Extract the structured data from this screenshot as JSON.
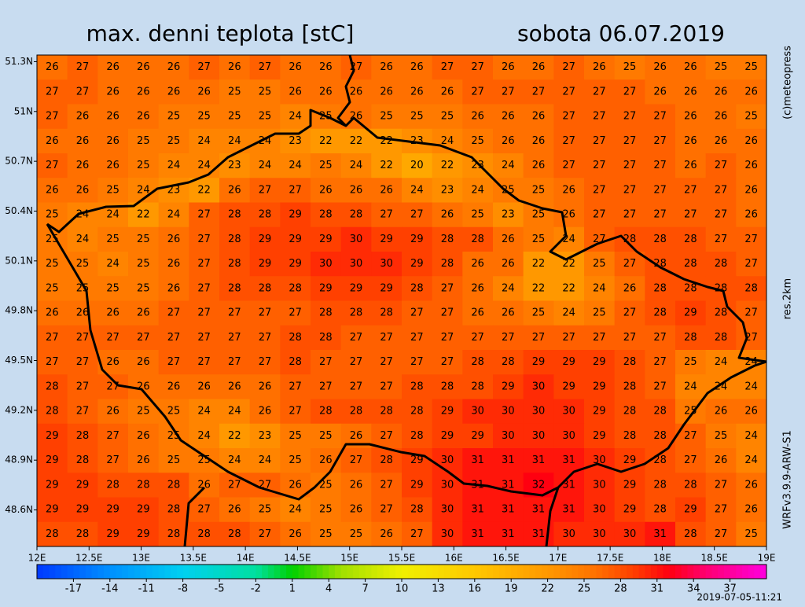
{
  "chart_data": {
    "type": "heatmap",
    "title": "max. denni teplota [stC]",
    "subtitle": "sobota 06.07.2019",
    "annotations": [
      "(c)meteopress",
      "res.2km",
      "WRFv3.9.9-ARW-S1",
      "2019-07-05-11:21"
    ],
    "xlim": [
      12,
      19
    ],
    "ylim": [
      48.38,
      51.34
    ],
    "xticks": [
      {
        "value": 12,
        "label": "12E"
      },
      {
        "value": 12.5,
        "label": "12.5E"
      },
      {
        "value": 13,
        "label": "13E"
      },
      {
        "value": 13.5,
        "label": "13.5E"
      },
      {
        "value": 14,
        "label": "14E"
      },
      {
        "value": 14.5,
        "label": "14.5E"
      },
      {
        "value": 15,
        "label": "15E"
      },
      {
        "value": 15.5,
        "label": "15.5E"
      },
      {
        "value": 16,
        "label": "16E"
      },
      {
        "value": 16.5,
        "label": "16.5E"
      },
      {
        "value": 17,
        "label": "17E"
      },
      {
        "value": 17.5,
        "label": "17.5E"
      },
      {
        "value": 18,
        "label": "18E"
      },
      {
        "value": 18.5,
        "label": "18.5E"
      },
      {
        "value": 19,
        "label": "19E"
      }
    ],
    "yticks": [
      {
        "value": 48.6,
        "label": "48.6N"
      },
      {
        "value": 48.9,
        "label": "48.9N"
      },
      {
        "value": 49.2,
        "label": "49.2N"
      },
      {
        "value": 49.5,
        "label": "49.5N"
      },
      {
        "value": 49.8,
        "label": "49.8N"
      },
      {
        "value": 50.1,
        "label": "50.1N"
      },
      {
        "value": 50.4,
        "label": "50.4N"
      },
      {
        "value": 50.7,
        "label": "50.7N"
      },
      {
        "value": 51,
        "label": "51N"
      },
      {
        "value": 51.3,
        "label": "51.3N"
      }
    ],
    "colorbar": {
      "range": [
        -20,
        40
      ],
      "ticks": [
        -17,
        -14,
        -11,
        -8,
        -5,
        -2,
        1,
        4,
        7,
        10,
        13,
        16,
        19,
        22,
        25,
        28,
        31,
        34,
        37
      ],
      "stops": [
        [
          -20,
          "#0038ff"
        ],
        [
          -14,
          "#0090ff"
        ],
        [
          -8,
          "#00d0f0"
        ],
        [
          -2,
          "#00e0a0"
        ],
        [
          1,
          "#00d000"
        ],
        [
          5,
          "#a0e000"
        ],
        [
          10,
          "#f0f000"
        ],
        [
          16,
          "#ffc800"
        ],
        [
          22,
          "#ff9800"
        ],
        [
          26,
          "#ff7000"
        ],
        [
          29,
          "#ff4000"
        ],
        [
          32,
          "#ff0010"
        ],
        [
          35,
          "#ff0070"
        ],
        [
          40,
          "#ff00e0"
        ]
      ]
    },
    "values": [
      [
        26,
        27,
        26,
        26,
        26,
        27,
        26,
        27,
        26,
        26,
        27,
        26,
        26,
        27,
        27,
        26,
        26,
        27,
        26,
        25,
        26,
        26,
        25,
        25
      ],
      [
        27,
        27,
        26,
        26,
        26,
        26,
        25,
        25,
        26,
        26,
        26,
        26,
        26,
        26,
        27,
        27,
        27,
        27,
        27,
        27,
        26,
        26,
        26,
        26
      ],
      [
        27,
        26,
        26,
        26,
        25,
        25,
        25,
        25,
        24,
        25,
        26,
        25,
        25,
        25,
        26,
        26,
        26,
        27,
        27,
        27,
        27,
        26,
        26,
        25
      ],
      [
        26,
        26,
        26,
        25,
        25,
        24,
        24,
        24,
        23,
        22,
        22,
        22,
        23,
        24,
        25,
        26,
        26,
        27,
        27,
        27,
        27,
        26,
        26,
        26
      ],
      [
        27,
        26,
        26,
        25,
        24,
        24,
        23,
        24,
        24,
        25,
        24,
        22,
        20,
        22,
        23,
        24,
        26,
        27,
        27,
        27,
        27,
        26,
        27,
        26
      ],
      [
        26,
        26,
        25,
        24,
        23,
        22,
        26,
        27,
        27,
        26,
        26,
        26,
        24,
        23,
        24,
        25,
        25,
        26,
        27,
        27,
        27,
        27,
        27,
        26
      ],
      [
        25,
        24,
        24,
        22,
        24,
        27,
        28,
        28,
        29,
        28,
        28,
        27,
        27,
        26,
        25,
        23,
        25,
        26,
        27,
        27,
        27,
        27,
        27,
        26
      ],
      [
        25,
        24,
        25,
        25,
        26,
        27,
        28,
        29,
        29,
        29,
        30,
        29,
        29,
        28,
        28,
        26,
        25,
        24,
        27,
        28,
        28,
        28,
        27,
        27
      ],
      [
        25,
        25,
        24,
        25,
        26,
        27,
        28,
        29,
        29,
        30,
        30,
        30,
        29,
        28,
        26,
        26,
        22,
        22,
        25,
        27,
        28,
        28,
        28,
        27
      ],
      [
        25,
        25,
        25,
        25,
        26,
        27,
        28,
        28,
        28,
        29,
        29,
        29,
        28,
        27,
        26,
        24,
        22,
        22,
        24,
        26,
        28,
        28,
        28,
        28
      ],
      [
        26,
        26,
        26,
        26,
        27,
        27,
        27,
        27,
        27,
        28,
        28,
        28,
        27,
        27,
        26,
        26,
        25,
        24,
        25,
        27,
        28,
        29,
        28,
        27
      ],
      [
        27,
        27,
        27,
        27,
        27,
        27,
        27,
        27,
        28,
        28,
        27,
        27,
        27,
        27,
        27,
        27,
        27,
        27,
        27,
        27,
        27,
        28,
        28,
        27
      ],
      [
        27,
        27,
        26,
        26,
        27,
        27,
        27,
        27,
        28,
        27,
        27,
        27,
        27,
        27,
        28,
        28,
        29,
        29,
        29,
        28,
        27,
        25,
        24,
        24
      ],
      [
        28,
        27,
        27,
        26,
        26,
        26,
        26,
        26,
        27,
        27,
        27,
        27,
        28,
        28,
        28,
        29,
        30,
        29,
        29,
        28,
        27,
        24,
        24,
        24
      ],
      [
        28,
        27,
        26,
        25,
        25,
        24,
        24,
        26,
        27,
        28,
        28,
        28,
        28,
        29,
        30,
        30,
        30,
        30,
        29,
        28,
        28,
        25,
        26,
        26
      ],
      [
        29,
        28,
        27,
        26,
        25,
        24,
        22,
        23,
        25,
        25,
        26,
        27,
        28,
        29,
        29,
        30,
        30,
        30,
        29,
        28,
        28,
        27,
        25,
        24
      ],
      [
        29,
        28,
        27,
        26,
        25,
        25,
        24,
        24,
        25,
        26,
        27,
        28,
        29,
        30,
        31,
        31,
        31,
        31,
        30,
        29,
        28,
        27,
        26,
        24
      ],
      [
        29,
        29,
        28,
        28,
        28,
        26,
        27,
        27,
        26,
        25,
        26,
        27,
        29,
        30,
        31,
        31,
        32,
        31,
        30,
        29,
        28,
        28,
        27,
        26
      ],
      [
        29,
        29,
        29,
        29,
        28,
        27,
        26,
        25,
        24,
        25,
        26,
        27,
        28,
        30,
        31,
        31,
        31,
        31,
        30,
        29,
        28,
        29,
        27,
        26
      ],
      [
        28,
        28,
        29,
        29,
        28,
        28,
        28,
        27,
        26,
        25,
        25,
        26,
        27,
        30,
        31,
        31,
        31,
        30,
        30,
        30,
        31,
        28,
        27,
        25
      ]
    ]
  }
}
